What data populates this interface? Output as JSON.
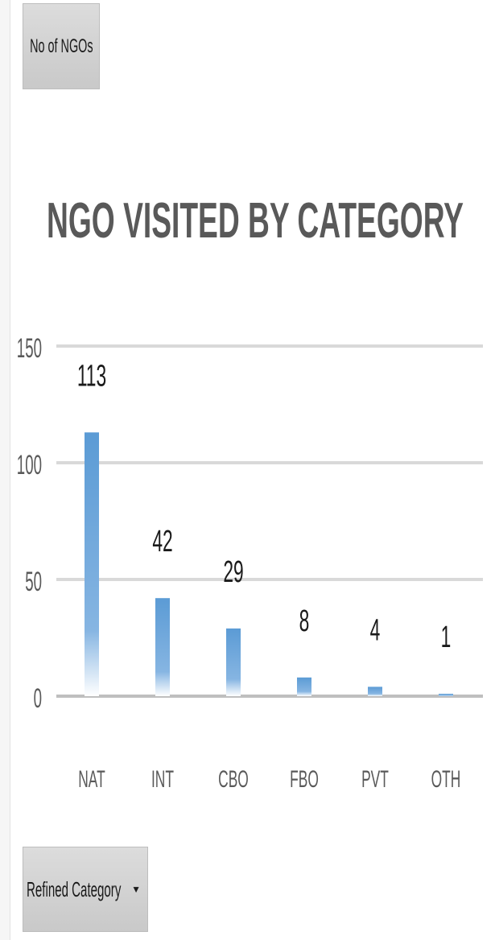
{
  "pivot": {
    "measure_label": "No of NGOs",
    "category_label": "Refined Category",
    "category_dropdown_icon": "triangle-down-icon"
  },
  "chart_data": {
    "type": "bar",
    "title": "NGO VISITED BY CATEGORY",
    "categories": [
      "NAT",
      "INT",
      "CBO",
      "FBO",
      "PVT",
      "OTH"
    ],
    "values": [
      113,
      42,
      29,
      8,
      4,
      1
    ],
    "data_labels": [
      "113",
      "42",
      "29",
      "8",
      "4",
      "1"
    ],
    "ylim": [
      0,
      150
    ],
    "yticks": [
      0,
      50,
      100,
      150
    ],
    "ytick_labels": [
      "0",
      "50",
      "100",
      "150"
    ],
    "grid": true,
    "legend": "none",
    "colors": {
      "bar_top": "#5b9bd5",
      "bar_bottom": "#ffffff",
      "gridline": "#d9d9d9",
      "title": "#595959",
      "label": "#1a1a1a",
      "tick": "#595959"
    }
  }
}
